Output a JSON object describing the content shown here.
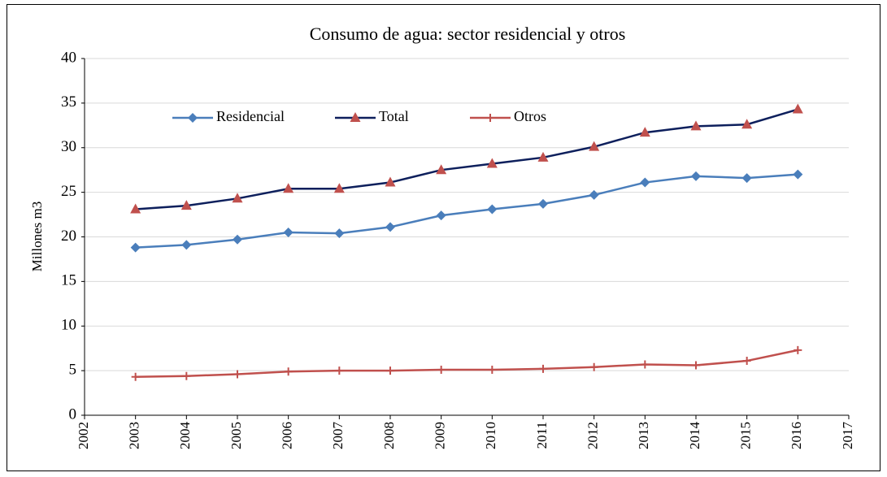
{
  "chart_data": {
    "type": "line",
    "title": "Consumo de agua: sector residencial y otros",
    "ylabel": "Millones m3",
    "x": [
      2003,
      2004,
      2005,
      2006,
      2007,
      2008,
      2009,
      2010,
      2011,
      2012,
      2013,
      2014,
      2015,
      2016
    ],
    "series": [
      {
        "name": "Residencial",
        "color": "#4a7ebb",
        "marker": "diamond",
        "marker_color": "#4a7ebb",
        "values": [
          18.8,
          19.1,
          19.7,
          20.5,
          20.4,
          21.1,
          22.4,
          23.1,
          23.7,
          24.7,
          26.1,
          26.8,
          26.6,
          27.0
        ]
      },
      {
        "name": "Total",
        "color": "#0d1f5c",
        "marker": "triangle",
        "marker_color": "#c0504d",
        "values": [
          23.1,
          23.5,
          24.3,
          25.4,
          25.4,
          26.1,
          27.5,
          28.2,
          28.9,
          30.1,
          31.7,
          32.4,
          32.6,
          34.3
        ]
      },
      {
        "name": "Otros",
        "color": "#c0504d",
        "marker": "plus",
        "marker_color": "#c0504d",
        "values": [
          4.3,
          4.4,
          4.6,
          4.9,
          5.0,
          5.0,
          5.1,
          5.1,
          5.2,
          5.4,
          5.7,
          5.6,
          6.1,
          7.3
        ]
      }
    ],
    "xlim": [
      2002,
      2017
    ],
    "xticks": [
      2002,
      2003,
      2004,
      2005,
      2006,
      2007,
      2008,
      2009,
      2010,
      2011,
      2012,
      2013,
      2014,
      2015,
      2016,
      2017
    ],
    "ylim": [
      0,
      40
    ],
    "yticks": [
      0,
      5,
      10,
      15,
      20,
      25,
      30,
      35,
      40
    ],
    "grid": true,
    "legend": "upper left"
  }
}
